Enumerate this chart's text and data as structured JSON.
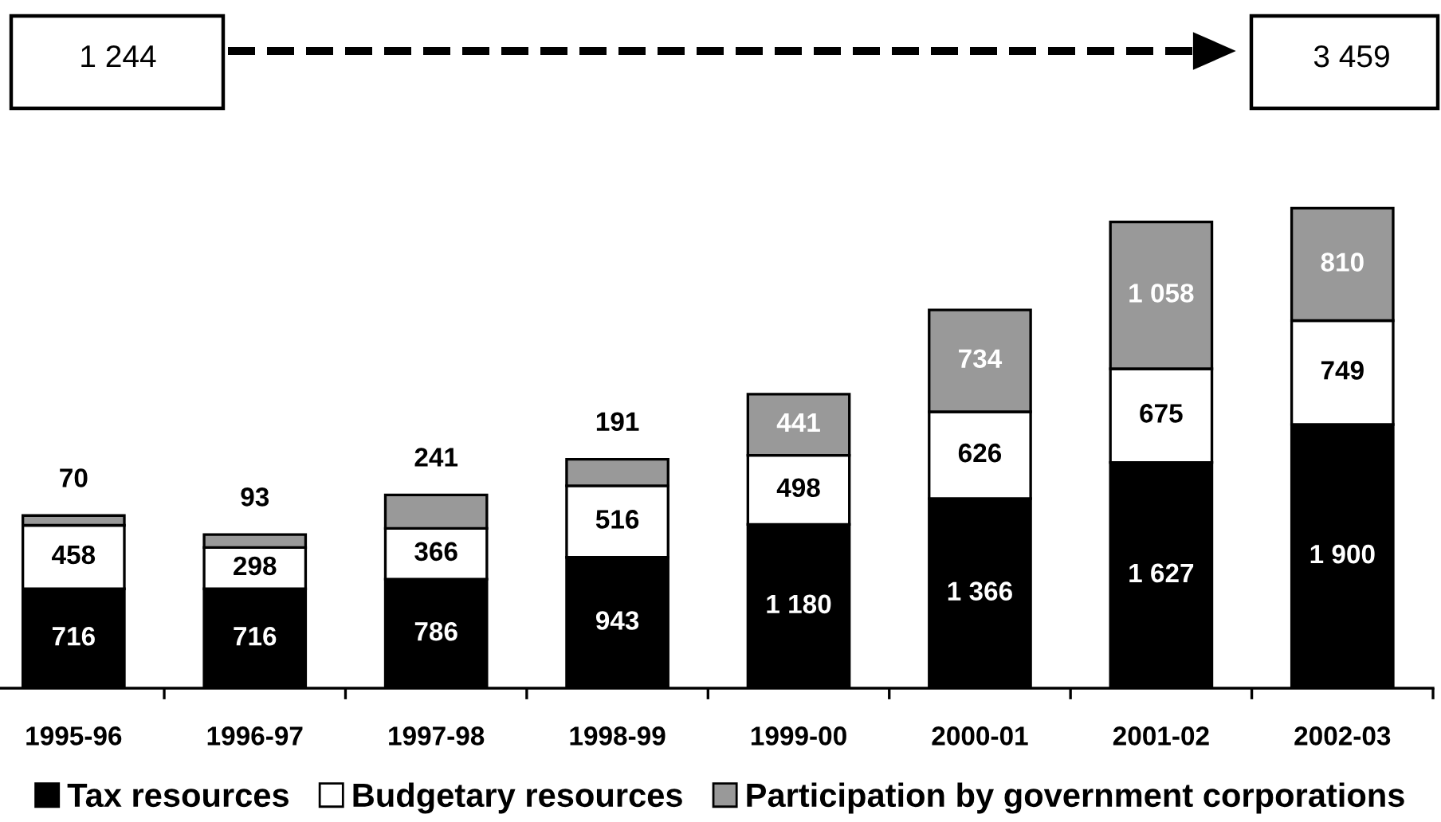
{
  "chart_data": {
    "type": "bar",
    "stacked": true,
    "categories": [
      "1995-96",
      "1996-97",
      "1997-98",
      "1998-99",
      "1999-00",
      "2000-01",
      "2001-02",
      "2002-03"
    ],
    "series": [
      {
        "name": "Tax resources",
        "color": "#000000",
        "values": [
          716,
          716,
          786,
          943,
          1180,
          1366,
          1627,
          1900
        ],
        "value_labels": [
          "716",
          "716",
          "786",
          "943",
          "1 180",
          "1 366",
          "1 627",
          "1 900"
        ]
      },
      {
        "name": "Budgetary resources",
        "color": "#ffffff",
        "values": [
          458,
          298,
          366,
          516,
          498,
          626,
          675,
          749
        ],
        "value_labels": [
          "458",
          "298",
          "366",
          "516",
          "498",
          "626",
          "675",
          "749"
        ]
      },
      {
        "name": "Participation by government corporations",
        "color": "#999999",
        "values": [
          70,
          93,
          241,
          191,
          441,
          734,
          1058,
          810
        ],
        "value_labels": [
          "70",
          "93",
          "241",
          "191",
          "441",
          "734",
          "1 058",
          "810"
        ]
      }
    ],
    "annotations": [
      "1 244",
      "3 459"
    ],
    "legend": "bottom"
  }
}
